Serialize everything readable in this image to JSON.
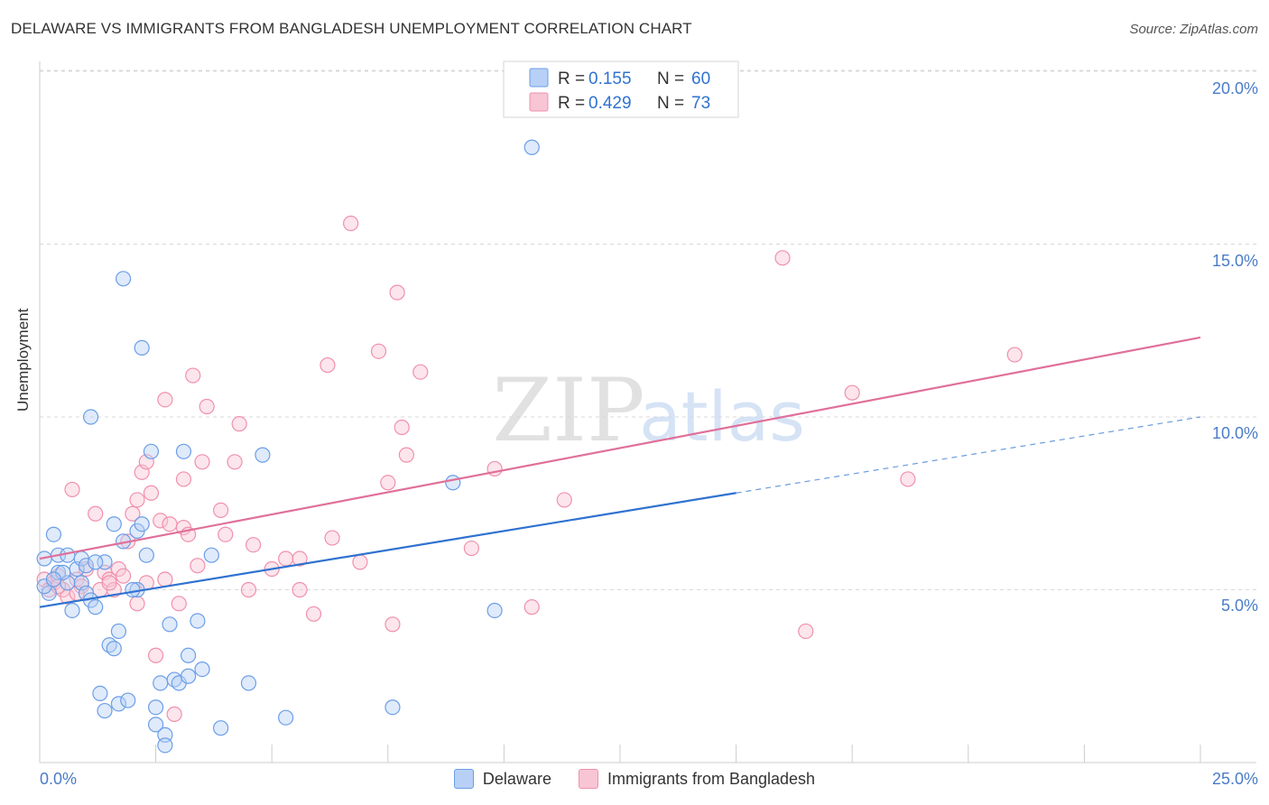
{
  "title": "DELAWARE VS IMMIGRANTS FROM BANGLADESH UNEMPLOYMENT CORRELATION CHART",
  "source": "Source: ZipAtlas.com",
  "watermark": {
    "zip": "ZIP",
    "atlas": "atlas"
  },
  "colors": {
    "delaware": "#6b9ee8",
    "delaware_fill": "#b8d0f5",
    "delaware_line": "#2f72d0",
    "bangladesh": "#f090ac",
    "bangladesh_fill": "#f8c5d5",
    "bangladesh_line": "#e0709a",
    "tick_label": "#4a7cc8",
    "grid": "#d8d8d8"
  },
  "chart_data": {
    "type": "scatter",
    "xlabel": "",
    "ylabel": "Unemployment",
    "xlim": [
      0,
      25
    ],
    "ylim": [
      0,
      20.0
    ],
    "x_tick_labels": [
      "0.0%",
      "25.0%"
    ],
    "y_ticks": [
      5,
      10,
      15,
      20
    ],
    "y_tick_labels": [
      "5.0%",
      "10.0%",
      "15.0%",
      "20.0%"
    ],
    "legend": [
      {
        "r_label": "R =",
        "r_value": "0.155",
        "n_label": "N =",
        "n_value": "60"
      },
      {
        "r_label": "R =",
        "r_value": "0.429",
        "n_label": "N =",
        "n_value": "73"
      }
    ],
    "series": [
      {
        "name": "Delaware",
        "trend": {
          "x0": 0,
          "y0": 4.5,
          "x1": 15,
          "y1": 7.8,
          "dash_to": 25
        },
        "points": [
          [
            0.1,
            5.9
          ],
          [
            0.2,
            4.9
          ],
          [
            0.3,
            6.6
          ],
          [
            0.4,
            5.5
          ],
          [
            0.4,
            6.0
          ],
          [
            0.6,
            5.2
          ],
          [
            0.6,
            6.0
          ],
          [
            0.7,
            4.4
          ],
          [
            0.8,
            5.6
          ],
          [
            0.9,
            5.9
          ],
          [
            0.9,
            5.2
          ],
          [
            1.0,
            4.9
          ],
          [
            1.0,
            5.7
          ],
          [
            1.1,
            4.7
          ],
          [
            1.1,
            10.0
          ],
          [
            1.2,
            4.5
          ],
          [
            1.3,
            2.0
          ],
          [
            1.4,
            5.8
          ],
          [
            1.4,
            1.5
          ],
          [
            1.5,
            3.4
          ],
          [
            1.6,
            3.3
          ],
          [
            1.6,
            6.9
          ],
          [
            1.7,
            3.8
          ],
          [
            1.7,
            1.7
          ],
          [
            1.8,
            6.4
          ],
          [
            1.8,
            14.0
          ],
          [
            1.9,
            1.8
          ],
          [
            2.1,
            6.7
          ],
          [
            2.1,
            5.0
          ],
          [
            2.2,
            12.0
          ],
          [
            2.2,
            6.9
          ],
          [
            2.3,
            6.0
          ],
          [
            2.4,
            9.0
          ],
          [
            2.5,
            1.1
          ],
          [
            2.5,
            1.6
          ],
          [
            2.6,
            2.3
          ],
          [
            2.7,
            0.8
          ],
          [
            2.7,
            0.5
          ],
          [
            2.8,
            4.0
          ],
          [
            2.9,
            2.4
          ],
          [
            3.0,
            2.3
          ],
          [
            3.1,
            9.0
          ],
          [
            3.2,
            2.5
          ],
          [
            3.2,
            3.1
          ],
          [
            3.4,
            4.1
          ],
          [
            3.5,
            2.7
          ],
          [
            3.7,
            6.0
          ],
          [
            3.9,
            1.0
          ],
          [
            4.5,
            2.3
          ],
          [
            4.8,
            8.9
          ],
          [
            5.3,
            1.3
          ],
          [
            7.6,
            1.6
          ],
          [
            8.9,
            8.1
          ],
          [
            9.8,
            4.4
          ],
          [
            10.6,
            17.8
          ],
          [
            0.1,
            5.1
          ],
          [
            0.5,
            5.5
          ],
          [
            1.2,
            5.8
          ],
          [
            2.0,
            5.0
          ],
          [
            0.3,
            5.3
          ]
        ]
      },
      {
        "name": "Immigrants from Bangladesh",
        "trend": {
          "x0": 0,
          "y0": 5.9,
          "x1": 25,
          "y1": 12.3
        },
        "points": [
          [
            0.1,
            5.3
          ],
          [
            0.2,
            5.0
          ],
          [
            0.3,
            5.2
          ],
          [
            0.4,
            5.4
          ],
          [
            0.5,
            5.0
          ],
          [
            0.6,
            4.8
          ],
          [
            0.7,
            7.9
          ],
          [
            0.8,
            5.3
          ],
          [
            0.9,
            5.1
          ],
          [
            1.0,
            5.6
          ],
          [
            1.2,
            7.2
          ],
          [
            1.3,
            5.0
          ],
          [
            1.4,
            5.5
          ],
          [
            1.5,
            5.3
          ],
          [
            1.6,
            5.0
          ],
          [
            1.7,
            5.6
          ],
          [
            1.8,
            5.4
          ],
          [
            1.9,
            6.4
          ],
          [
            2.0,
            7.2
          ],
          [
            2.1,
            7.6
          ],
          [
            2.1,
            4.6
          ],
          [
            2.2,
            8.4
          ],
          [
            2.3,
            8.7
          ],
          [
            2.4,
            7.8
          ],
          [
            2.5,
            3.1
          ],
          [
            2.6,
            7.0
          ],
          [
            2.7,
            5.3
          ],
          [
            2.7,
            10.5
          ],
          [
            2.8,
            6.9
          ],
          [
            2.9,
            1.4
          ],
          [
            3.0,
            4.6
          ],
          [
            3.1,
            8.2
          ],
          [
            3.1,
            6.8
          ],
          [
            3.2,
            6.6
          ],
          [
            3.3,
            11.2
          ],
          [
            3.4,
            5.7
          ],
          [
            3.5,
            8.7
          ],
          [
            3.6,
            10.3
          ],
          [
            3.9,
            7.3
          ],
          [
            4.0,
            6.6
          ],
          [
            4.2,
            8.7
          ],
          [
            4.3,
            9.8
          ],
          [
            4.5,
            5.0
          ],
          [
            4.6,
            6.3
          ],
          [
            5.0,
            5.6
          ],
          [
            5.3,
            5.9
          ],
          [
            5.6,
            5.9
          ],
          [
            5.6,
            5.0
          ],
          [
            5.9,
            4.3
          ],
          [
            6.2,
            11.5
          ],
          [
            6.3,
            6.5
          ],
          [
            6.7,
            15.6
          ],
          [
            6.9,
            5.8
          ],
          [
            7.3,
            11.9
          ],
          [
            7.5,
            8.1
          ],
          [
            7.6,
            4.0
          ],
          [
            7.7,
            13.6
          ],
          [
            7.8,
            9.7
          ],
          [
            7.9,
            8.9
          ],
          [
            8.2,
            11.3
          ],
          [
            9.3,
            6.2
          ],
          [
            9.8,
            8.5
          ],
          [
            10.6,
            4.5
          ],
          [
            11.3,
            7.6
          ],
          [
            16.0,
            14.6
          ],
          [
            16.5,
            3.8
          ],
          [
            17.5,
            10.7
          ],
          [
            18.7,
            8.2
          ],
          [
            21.0,
            11.8
          ],
          [
            1.5,
            5.2
          ],
          [
            0.8,
            4.9
          ],
          [
            2.3,
            5.2
          ],
          [
            0.4,
            5.1
          ]
        ]
      }
    ]
  }
}
